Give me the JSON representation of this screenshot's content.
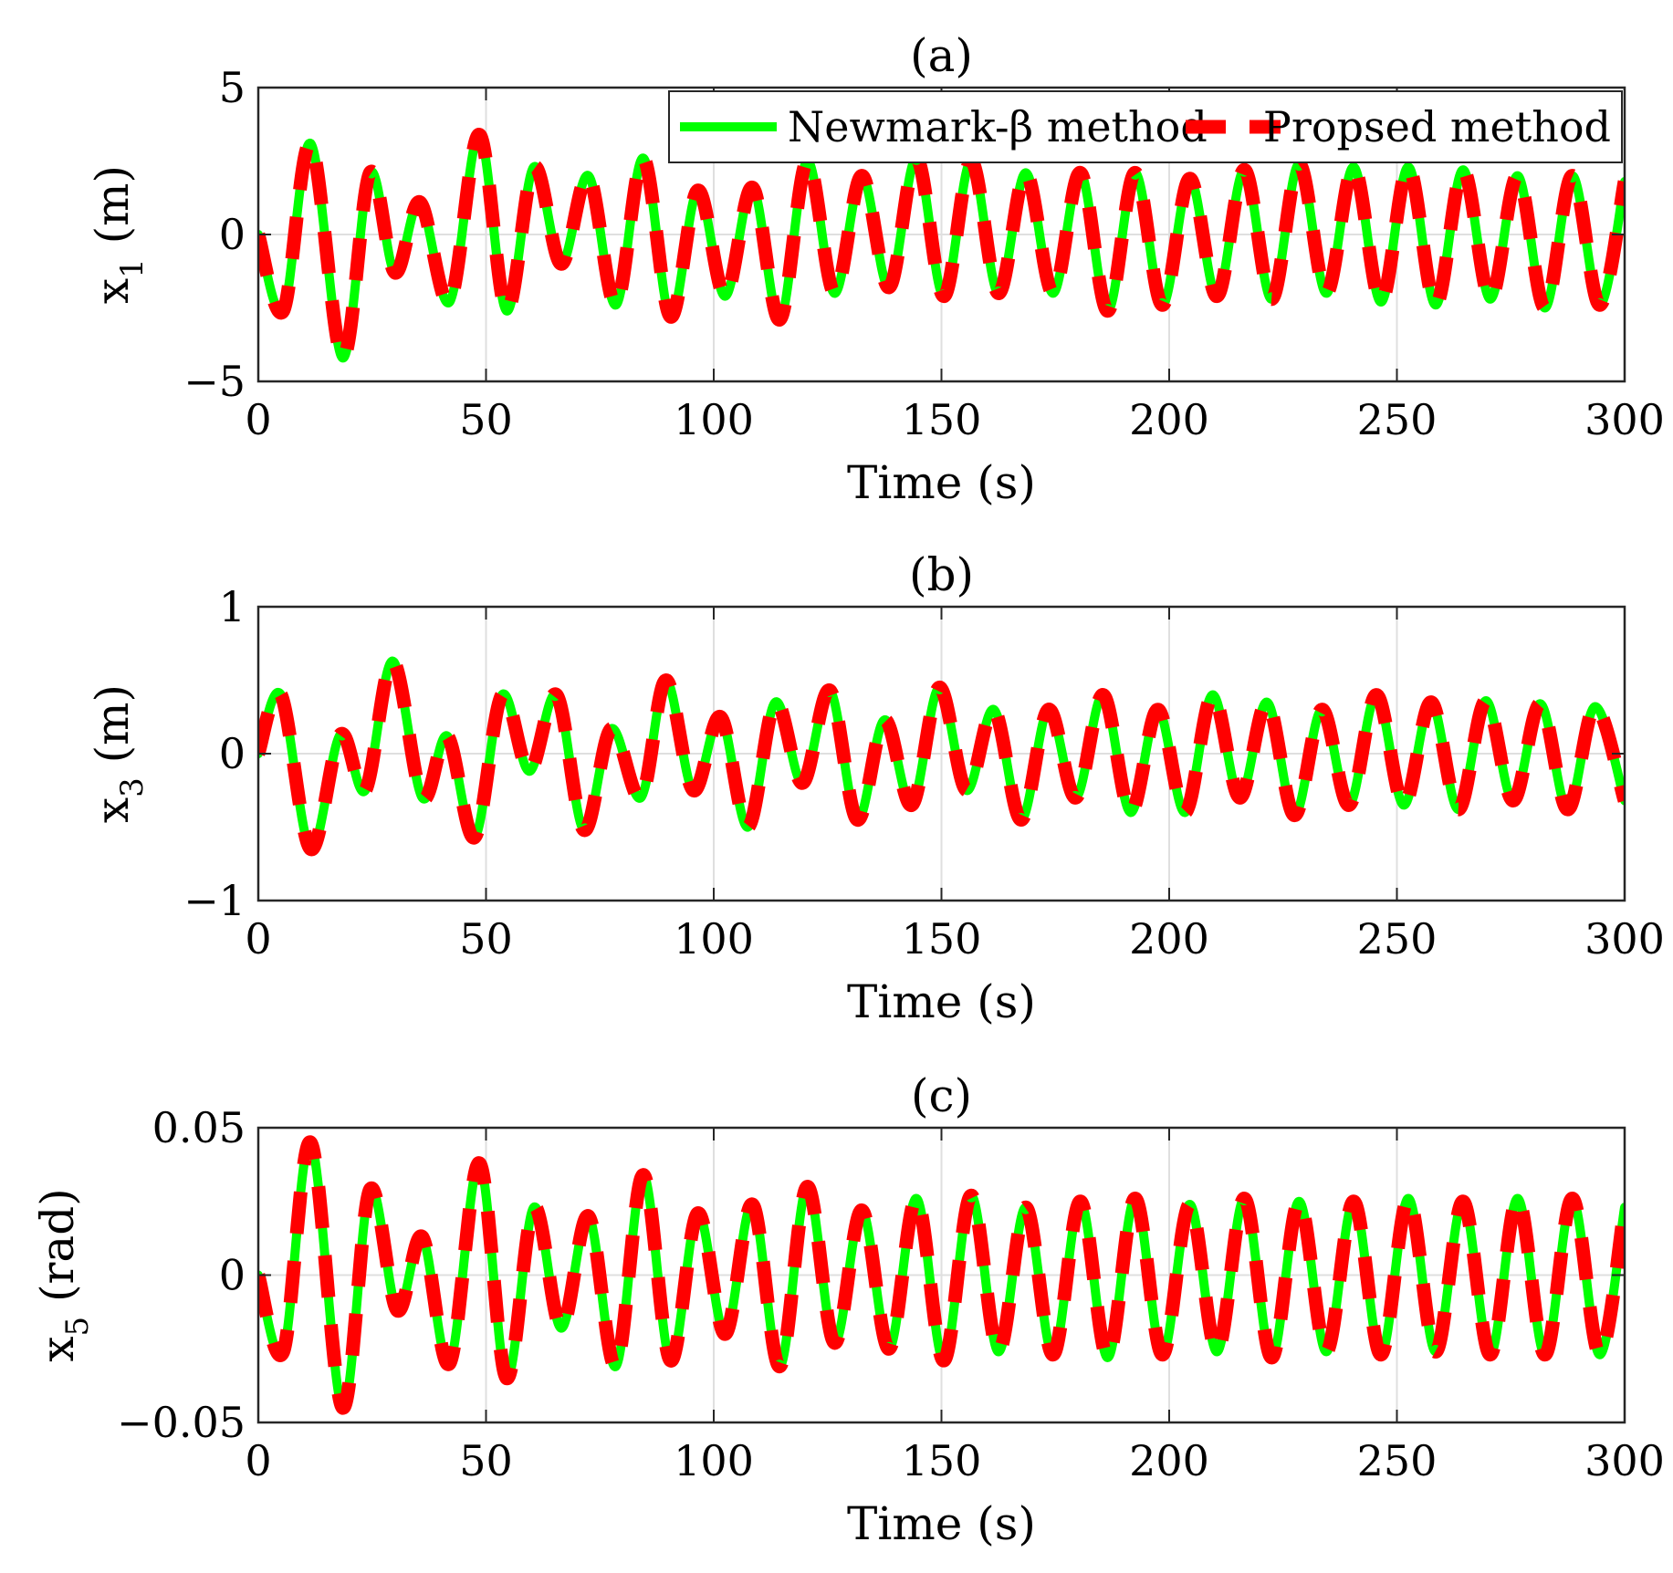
{
  "colors": {
    "newmark": "#00ff00",
    "proposed": "#ff0000",
    "grid": "#dfdfdf",
    "axis": "#262626",
    "background": "#ffffff"
  },
  "legend": {
    "location": "top-right",
    "entries": [
      "Newmark-β method",
      "Propsed method"
    ]
  },
  "chart_data": [
    {
      "type": "line",
      "title": "(a)",
      "xlabel": "Time (s)",
      "ylabel_var": "x",
      "ylabel_sub": "1",
      "ylabel_unit": "(m)",
      "xlim": [
        0,
        300
      ],
      "ylim": [
        -5,
        5
      ],
      "xticks": [
        0,
        50,
        100,
        150,
        200,
        250,
        300
      ],
      "yticks": [
        -5,
        0,
        5
      ],
      "xtick_labels": [
        "0",
        "50",
        "100",
        "150",
        "200",
        "250",
        "300"
      ],
      "ytick_labels": [
        "−5",
        "0",
        "5"
      ],
      "grid": true,
      "show_legend": true,
      "series": [
        {
          "name": "Newmark-β method",
          "style": "solid",
          "color": "#00ff00",
          "x": [
            0,
            5.5,
            11.5,
            18.5,
            24.5,
            30,
            35.5,
            42,
            48.5,
            54.5,
            60.5,
            66.5,
            72.5,
            78.5,
            84.5,
            90.5,
            96.5,
            102.5,
            108.5,
            114.5,
            120.5,
            126.5,
            132.5,
            138.5,
            144.5,
            150.5,
            156.5,
            162.5,
            168.5,
            174.5,
            180.5,
            186.5,
            192.5,
            198.5,
            204.5,
            210.5,
            216.5,
            222.5,
            228.5,
            234.5,
            240.5,
            246.5,
            252.5,
            258.5,
            264.5,
            270.5,
            276.5,
            282.5,
            288.5,
            294.5,
            300
          ],
          "y": [
            0,
            -2.6,
            3.1,
            -4.2,
            2.1,
            -1.3,
            1.1,
            -2.3,
            3.4,
            -2.6,
            2.3,
            -1.0,
            2.0,
            -2.4,
            2.6,
            -2.8,
            1.5,
            -2.1,
            1.6,
            -2.9,
            2.5,
            -2.0,
            2.0,
            -1.8,
            2.6,
            -2.1,
            2.5,
            -2.0,
            2.1,
            -2.0,
            2.1,
            -2.6,
            2.1,
            -2.4,
            1.9,
            -2.1,
            2.2,
            -2.2,
            2.4,
            -2.0,
            2.3,
            -2.3,
            2.3,
            -2.4,
            2.2,
            -2.2,
            2.0,
            -2.5,
            2.0,
            -2.4,
            1.8
          ]
        },
        {
          "name": "Propsed method",
          "style": "dashed",
          "color": "#ff0000",
          "x": [
            0,
            5.5,
            11.5,
            18.5,
            24.5,
            30,
            35.5,
            42,
            48.5,
            54.5,
            60.5,
            66.5,
            72.5,
            78.5,
            84.5,
            90.5,
            96.5,
            102.5,
            108.5,
            114.5,
            120.5,
            126.5,
            132.5,
            138.5,
            144.5,
            150.5,
            156.5,
            162.5,
            168.5,
            174.5,
            180.5,
            186.5,
            192.5,
            198.5,
            204.5,
            210.5,
            216.5,
            222.5,
            228.5,
            234.5,
            240.5,
            246.5,
            252.5,
            258.5,
            264.5,
            270.5,
            276.5,
            282.5,
            288.5,
            294.5,
            300
          ],
          "y": [
            0,
            -2.6,
            3.1,
            -4.2,
            2.1,
            -1.3,
            1.1,
            -2.3,
            3.4,
            -2.6,
            2.3,
            -1.0,
            2.0,
            -2.4,
            2.6,
            -2.8,
            1.5,
            -2.1,
            1.6,
            -2.9,
            2.5,
            -2.0,
            2.0,
            -1.8,
            2.6,
            -2.1,
            2.5,
            -2.0,
            2.1,
            -2.0,
            2.1,
            -2.6,
            2.1,
            -2.4,
            1.9,
            -2.1,
            2.2,
            -2.2,
            2.4,
            -2.0,
            2.3,
            -2.3,
            2.3,
            -2.4,
            2.2,
            -2.2,
            2.0,
            -2.5,
            2.0,
            -2.4,
            1.8
          ]
        }
      ]
    },
    {
      "type": "line",
      "title": "(b)",
      "xlabel": "Time (s)",
      "ylabel_var": "x",
      "ylabel_sub": "3",
      "ylabel_unit": "(m)",
      "xlim": [
        0,
        300
      ],
      "ylim": [
        -1,
        1
      ],
      "xticks": [
        0,
        50,
        100,
        150,
        200,
        250,
        300
      ],
      "yticks": [
        -1,
        0,
        1
      ],
      "xtick_labels": [
        "0",
        "50",
        "100",
        "150",
        "200",
        "250",
        "300"
      ],
      "ytick_labels": [
        "−1",
        "0",
        "1"
      ],
      "grid": true,
      "show_legend": false,
      "series": [
        {
          "name": "Newmark-β method",
          "style": "solid",
          "color": "#00ff00",
          "x": [
            0,
            5,
            11.5,
            18,
            23.5,
            29.5,
            36,
            41.5,
            47.5,
            53.5,
            59.5,
            65.5,
            71.5,
            77.5,
            84,
            89.5,
            95.5,
            101.5,
            107.5,
            113.5,
            119.5,
            125.5,
            131.5,
            137.5,
            143.5,
            149.5,
            155.5,
            161.5,
            167.5,
            173.5,
            179.5,
            185.5,
            191.5,
            197.5,
            203.5,
            209.5,
            215.5,
            221.5,
            227.5,
            233.5,
            239.5,
            245.5,
            251.5,
            257.5,
            263.5,
            269.5,
            275.5,
            281.5,
            287.5,
            293.5,
            300
          ],
          "y": [
            0,
            0.4,
            -0.65,
            0.13,
            -0.25,
            0.63,
            -0.3,
            0.12,
            -0.57,
            0.4,
            -0.12,
            0.4,
            -0.52,
            0.17,
            -0.3,
            0.5,
            -0.25,
            0.25,
            -0.5,
            0.35,
            -0.2,
            0.43,
            -0.45,
            0.23,
            -0.35,
            0.45,
            -0.25,
            0.3,
            -0.45,
            0.3,
            -0.3,
            0.4,
            -0.4,
            0.3,
            -0.4,
            0.4,
            -0.3,
            0.35,
            -0.42,
            0.3,
            -0.35,
            0.4,
            -0.35,
            0.35,
            -0.38,
            0.36,
            -0.32,
            0.34,
            -0.38,
            0.32,
            -0.32
          ]
        },
        {
          "name": "Propsed method",
          "style": "dashed",
          "color": "#ff0000",
          "x": [
            0,
            5,
            11.5,
            18,
            23.5,
            29.5,
            36,
            41.5,
            47.5,
            53.5,
            59.5,
            65.5,
            71.5,
            77.5,
            84,
            89.5,
            95.5,
            101.5,
            107.5,
            113.5,
            119.5,
            125.5,
            131.5,
            137.5,
            143.5,
            149.5,
            155.5,
            161.5,
            167.5,
            173.5,
            179.5,
            185.5,
            191.5,
            197.5,
            203.5,
            209.5,
            215.5,
            221.5,
            227.5,
            233.5,
            239.5,
            245.5,
            251.5,
            257.5,
            263.5,
            269.5,
            275.5,
            281.5,
            287.5,
            293.5,
            300
          ],
          "y": [
            0,
            0.4,
            -0.65,
            0.13,
            -0.25,
            0.63,
            -0.3,
            0.12,
            -0.57,
            0.4,
            -0.12,
            0.4,
            -0.52,
            0.17,
            -0.3,
            0.5,
            -0.25,
            0.25,
            -0.5,
            0.35,
            -0.2,
            0.43,
            -0.45,
            0.23,
            -0.35,
            0.45,
            -0.25,
            0.3,
            -0.45,
            0.3,
            -0.3,
            0.4,
            -0.4,
            0.3,
            -0.4,
            0.4,
            -0.3,
            0.35,
            -0.42,
            0.3,
            -0.35,
            0.4,
            -0.35,
            0.35,
            -0.38,
            0.36,
            -0.32,
            0.34,
            -0.38,
            0.32,
            -0.32
          ]
        }
      ]
    },
    {
      "type": "line",
      "title": "(c)",
      "xlabel": "Time (s)",
      "ylabel_var": "x",
      "ylabel_sub": "5",
      "ylabel_unit": "(rad)",
      "xlim": [
        0,
        300
      ],
      "ylim": [
        -0.05,
        0.05
      ],
      "xticks": [
        0,
        50,
        100,
        150,
        200,
        250,
        300
      ],
      "yticks": [
        -0.05,
        0,
        0.05
      ],
      "xtick_labels": [
        "0",
        "50",
        "100",
        "150",
        "200",
        "250",
        "300"
      ],
      "ytick_labels": [
        "−0.05",
        "0",
        "0.05"
      ],
      "grid": true,
      "show_legend": false,
      "series": [
        {
          "name": "Newmark-β method",
          "style": "solid",
          "color": "#00ff00",
          "x": [
            0,
            5.5,
            11.5,
            18.5,
            24.5,
            30.5,
            36,
            42,
            48.5,
            54.5,
            60.5,
            66.5,
            72.5,
            78.5,
            84.5,
            90.5,
            96.5,
            102.5,
            108.5,
            114.5,
            120.5,
            126.5,
            132.5,
            138.5,
            144.5,
            150.5,
            156.5,
            162.5,
            168.5,
            174.5,
            180.5,
            186.5,
            192.5,
            198.5,
            204.5,
            210.5,
            216.5,
            222.5,
            228.5,
            234.5,
            240.5,
            246.5,
            252.5,
            258.5,
            264.5,
            270.5,
            276.5,
            282.5,
            288.5,
            294.5,
            300
          ],
          "y": [
            0,
            -0.026,
            0.045,
            -0.045,
            0.029,
            -0.012,
            0.013,
            -0.03,
            0.038,
            -0.035,
            0.023,
            -0.018,
            0.02,
            -0.031,
            0.034,
            -0.029,
            0.021,
            -0.02,
            0.024,
            -0.031,
            0.03,
            -0.023,
            0.022,
            -0.025,
            0.026,
            -0.029,
            0.027,
            -0.026,
            0.023,
            -0.027,
            0.025,
            -0.028,
            0.026,
            -0.027,
            0.024,
            -0.026,
            0.026,
            -0.028,
            0.025,
            -0.026,
            0.025,
            -0.027,
            0.026,
            -0.026,
            0.025,
            -0.027,
            0.026,
            -0.027,
            0.026,
            -0.027,
            0.023
          ]
        },
        {
          "name": "Propsed method",
          "style": "dashed",
          "color": "#ff0000",
          "x": [
            0,
            5.5,
            11.5,
            18.5,
            24.5,
            30.5,
            36,
            42,
            48.5,
            54.5,
            60.5,
            66.5,
            72.5,
            78.5,
            84.5,
            90.5,
            96.5,
            102.5,
            108.5,
            114.5,
            120.5,
            126.5,
            132.5,
            138.5,
            144.5,
            150.5,
            156.5,
            162.5,
            168.5,
            174.5,
            180.5,
            186.5,
            192.5,
            198.5,
            204.5,
            210.5,
            216.5,
            222.5,
            228.5,
            234.5,
            240.5,
            246.5,
            252.5,
            258.5,
            264.5,
            270.5,
            276.5,
            282.5,
            288.5,
            294.5,
            300
          ],
          "y": [
            0,
            -0.026,
            0.045,
            -0.045,
            0.029,
            -0.012,
            0.013,
            -0.03,
            0.038,
            -0.035,
            0.023,
            -0.018,
            0.02,
            -0.031,
            0.034,
            -0.029,
            0.021,
            -0.02,
            0.024,
            -0.031,
            0.03,
            -0.023,
            0.022,
            -0.025,
            0.026,
            -0.029,
            0.027,
            -0.026,
            0.023,
            -0.027,
            0.025,
            -0.028,
            0.026,
            -0.027,
            0.024,
            -0.026,
            0.026,
            -0.028,
            0.025,
            -0.026,
            0.025,
            -0.027,
            0.026,
            -0.026,
            0.025,
            -0.027,
            0.026,
            -0.027,
            0.026,
            -0.027,
            0.023
          ]
        }
      ]
    }
  ]
}
